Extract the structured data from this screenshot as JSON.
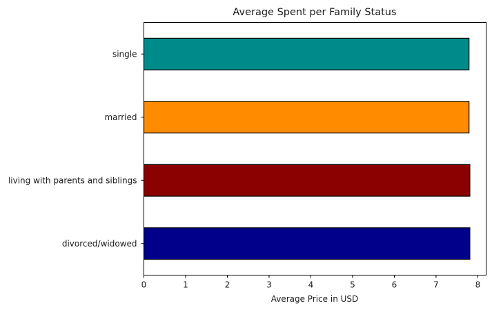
{
  "chart_data": {
    "type": "bar",
    "orientation": "horizontal",
    "title": "Average Spent per Family Status",
    "xlabel": "Average Price in USD",
    "ylabel": "",
    "categories": [
      "divorced/widowed",
      "living with parents and siblings",
      "married",
      "single"
    ],
    "values": [
      7.81,
      7.81,
      7.79,
      7.79
    ],
    "colors": [
      "#00008b",
      "#8b0000",
      "#ff8c00",
      "#008b8b"
    ],
    "xlim": [
      0,
      8.2
    ],
    "xticks": [
      0,
      1,
      2,
      3,
      4,
      5,
      6,
      7,
      8
    ],
    "grid": false,
    "legend": "none"
  }
}
